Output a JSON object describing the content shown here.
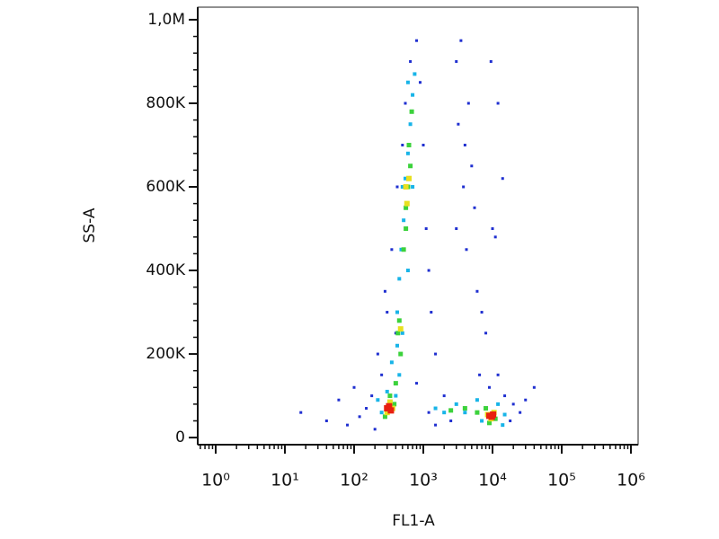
{
  "chart_data": {
    "type": "scatter",
    "x_label": "FL1-A",
    "y_label": "SS-A",
    "xscale": "log",
    "xlim": [
      0.55,
      1270000
    ],
    "xticks": [
      {
        "value": 1,
        "label": "10⁰"
      },
      {
        "value": 10,
        "label": "10¹"
      },
      {
        "value": 100,
        "label": "10²"
      },
      {
        "value": 1000,
        "label": "10³"
      },
      {
        "value": 10000,
        "label": "10⁴"
      },
      {
        "value": 100000,
        "label": "10⁵"
      },
      {
        "value": 1000000,
        "label": "10⁶"
      }
    ],
    "ylim": [
      -17000,
      1030000
    ],
    "yticks": [
      0,
      {
        "value": 200000,
        "label": "200K"
      },
      {
        "value": 400000,
        "label": "400K"
      },
      {
        "value": 600000,
        "label": "600K"
      },
      {
        "value": 800000,
        "label": "800K"
      },
      {
        "value": 1000000,
        "label": "1,0M"
      }
    ],
    "series": [
      {
        "color": "#1f2fd0",
        "x": [
          17,
          40,
          60,
          80,
          100,
          120,
          150,
          180,
          200,
          250,
          220,
          280,
          300,
          350,
          400,
          420,
          500,
          550,
          650,
          800,
          900,
          1000,
          1100,
          1200,
          1300,
          1500,
          2000,
          2500,
          3000,
          3500,
          3200,
          4000,
          4500,
          3800,
          5000,
          5500,
          3000,
          4200,
          6000,
          7000,
          8000,
          9000,
          12000,
          15000,
          20000,
          25000,
          30000,
          40000,
          18000,
          10000,
          11000,
          14000,
          9500,
          12000,
          6500,
          800,
          1200,
          1500
        ],
        "y": [
          60000,
          40000,
          90000,
          30000,
          120000,
          50000,
          70000,
          100000,
          20000,
          150000,
          200000,
          350000,
          300000,
          450000,
          250000,
          600000,
          700000,
          800000,
          900000,
          950000,
          850000,
          700000,
          500000,
          400000,
          300000,
          200000,
          100000,
          40000,
          900000,
          950000,
          750000,
          700000,
          800000,
          600000,
          650000,
          550000,
          500000,
          450000,
          350000,
          300000,
          250000,
          120000,
          150000,
          100000,
          80000,
          60000,
          90000,
          120000,
          40000,
          500000,
          480000,
          620000,
          900000,
          800000,
          150000,
          130000,
          60000,
          30000
        ]
      },
      {
        "color": "#18b4e8",
        "x": [
          250,
          220,
          300,
          400,
          350,
          420,
          450,
          480,
          520,
          550,
          600,
          650,
          700,
          750,
          600,
          500,
          700,
          420,
          1500,
          2000,
          3000,
          4000,
          6000,
          7000,
          12000,
          15000,
          14000,
          600,
          500,
          450
        ],
        "y": [
          60000,
          90000,
          110000,
          100000,
          180000,
          300000,
          380000,
          450000,
          520000,
          620000,
          680000,
          750000,
          820000,
          870000,
          850000,
          600000,
          600000,
          220000,
          70000,
          60000,
          80000,
          60000,
          90000,
          40000,
          80000,
          55000,
          30000,
          400000,
          250000,
          150000
        ]
      },
      {
        "color": "#3cd23c",
        "x": [
          280,
          330,
          380,
          400,
          430,
          450,
          470,
          520,
          560,
          600,
          620,
          680,
          650,
          560,
          2500,
          4000,
          6000,
          8000,
          11000,
          9000
        ],
        "y": [
          50000,
          100000,
          80000,
          130000,
          250000,
          280000,
          200000,
          450000,
          550000,
          600000,
          700000,
          780000,
          650000,
          500000,
          65000,
          70000,
          60000,
          70000,
          45000,
          35000
        ]
      },
      {
        "color": "#e8e020",
        "x": [
          300,
          330,
          360,
          580,
          620,
          560,
          470,
          8500,
          10500,
          9500
        ],
        "y": [
          60000,
          85000,
          70000,
          560000,
          620000,
          600000,
          260000,
          55000,
          60000,
          45000
        ]
      },
      {
        "color": "#e82010",
        "x": [
          320,
          300,
          340,
          9800,
          10200,
          9000
        ],
        "y": [
          75000,
          70000,
          65000,
          50000,
          55000,
          52000
        ]
      }
    ]
  }
}
